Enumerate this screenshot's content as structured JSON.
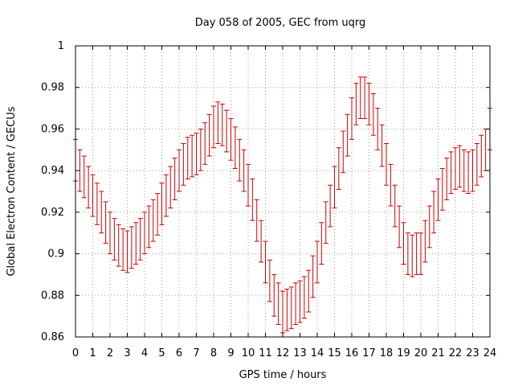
{
  "chart_data": {
    "type": "line",
    "title": "Day 058 of 2005, GEC from uqrg",
    "xlabel": "GPS time / hours",
    "ylabel": "Global Electron Content / GECUs",
    "xlim": [
      0,
      24
    ],
    "ylim": [
      0.86,
      1.0
    ],
    "grid": true,
    "xticks": [
      0,
      1,
      2,
      3,
      4,
      5,
      6,
      7,
      8,
      9,
      10,
      11,
      12,
      13,
      14,
      15,
      16,
      17,
      18,
      19,
      20,
      21,
      22,
      23,
      24
    ],
    "yticks": [
      0.86,
      0.88,
      0.9,
      0.92,
      0.94,
      0.96,
      0.98,
      1.0
    ],
    "ytick_labels": [
      "0.86",
      "0.88",
      "0.9",
      "0.92",
      "0.94",
      "0.96",
      "0.98",
      "1"
    ],
    "error_color": "#cc0000",
    "series": [
      {
        "name": "GEC",
        "x": [
          0,
          0.25,
          0.5,
          0.75,
          1,
          1.25,
          1.5,
          1.75,
          2,
          2.25,
          2.5,
          2.75,
          3,
          3.25,
          3.5,
          3.75,
          4,
          4.25,
          4.5,
          4.75,
          5,
          5.25,
          5.5,
          5.75,
          6,
          6.25,
          6.5,
          6.75,
          7,
          7.25,
          7.5,
          7.75,
          8,
          8.25,
          8.5,
          8.75,
          9,
          9.25,
          9.5,
          9.75,
          10,
          10.25,
          10.5,
          10.75,
          11,
          11.25,
          11.5,
          11.75,
          12,
          12.25,
          12.5,
          12.75,
          13,
          13.25,
          13.5,
          13.75,
          14,
          14.25,
          14.5,
          14.75,
          15,
          15.25,
          15.5,
          15.75,
          16,
          16.25,
          16.5,
          16.75,
          17,
          17.25,
          17.5,
          17.75,
          18,
          18.25,
          18.5,
          18.75,
          19,
          19.25,
          19.5,
          19.75,
          20,
          20.25,
          20.5,
          20.75,
          21,
          21.25,
          21.5,
          21.75,
          22,
          22.25,
          22.5,
          22.75,
          23,
          23.25,
          23.5,
          23.75,
          24
        ],
        "y": [
          0.945,
          0.94,
          0.937,
          0.932,
          0.928,
          0.924,
          0.92,
          0.915,
          0.91,
          0.907,
          0.904,
          0.902,
          0.901,
          0.903,
          0.905,
          0.907,
          0.91,
          0.913,
          0.916,
          0.919,
          0.924,
          0.928,
          0.932,
          0.936,
          0.94,
          0.943,
          0.946,
          0.947,
          0.948,
          0.95,
          0.953,
          0.957,
          0.961,
          0.963,
          0.962,
          0.959,
          0.955,
          0.951,
          0.945,
          0.94,
          0.933,
          0.926,
          0.916,
          0.906,
          0.896,
          0.887,
          0.88,
          0.876,
          0.872,
          0.873,
          0.874,
          0.876,
          0.877,
          0.879,
          0.882,
          0.889,
          0.896,
          0.905,
          0.915,
          0.923,
          0.932,
          0.941,
          0.949,
          0.957,
          0.965,
          0.972,
          0.975,
          0.975,
          0.972,
          0.967,
          0.96,
          0.952,
          0.943,
          0.933,
          0.923,
          0.913,
          0.905,
          0.9,
          0.899,
          0.9,
          0.9,
          0.906,
          0.913,
          0.92,
          0.926,
          0.931,
          0.936,
          0.939,
          0.941,
          0.942,
          0.94,
          0.939,
          0.94,
          0.943,
          0.947,
          0.95,
          0.96
        ],
        "err": [
          0.01,
          0.01,
          0.01,
          0.01,
          0.01,
          0.01,
          0.01,
          0.01,
          0.01,
          0.01,
          0.01,
          0.01,
          0.01,
          0.01,
          0.01,
          0.01,
          0.01,
          0.01,
          0.01,
          0.01,
          0.01,
          0.01,
          0.01,
          0.01,
          0.01,
          0.01,
          0.01,
          0.01,
          0.01,
          0.01,
          0.01,
          0.01,
          0.01,
          0.01,
          0.01,
          0.01,
          0.01,
          0.01,
          0.01,
          0.01,
          0.01,
          0.01,
          0.01,
          0.01,
          0.01,
          0.01,
          0.01,
          0.01,
          0.01,
          0.01,
          0.01,
          0.01,
          0.01,
          0.01,
          0.01,
          0.01,
          0.01,
          0.01,
          0.01,
          0.01,
          0.01,
          0.01,
          0.01,
          0.01,
          0.01,
          0.01,
          0.01,
          0.01,
          0.01,
          0.01,
          0.01,
          0.01,
          0.01,
          0.01,
          0.01,
          0.01,
          0.01,
          0.01,
          0.01,
          0.01,
          0.01,
          0.01,
          0.01,
          0.01,
          0.01,
          0.01,
          0.01,
          0.01,
          0.01,
          0.01,
          0.01,
          0.01,
          0.01,
          0.01,
          0.01,
          0.01,
          0.01
        ]
      }
    ]
  }
}
